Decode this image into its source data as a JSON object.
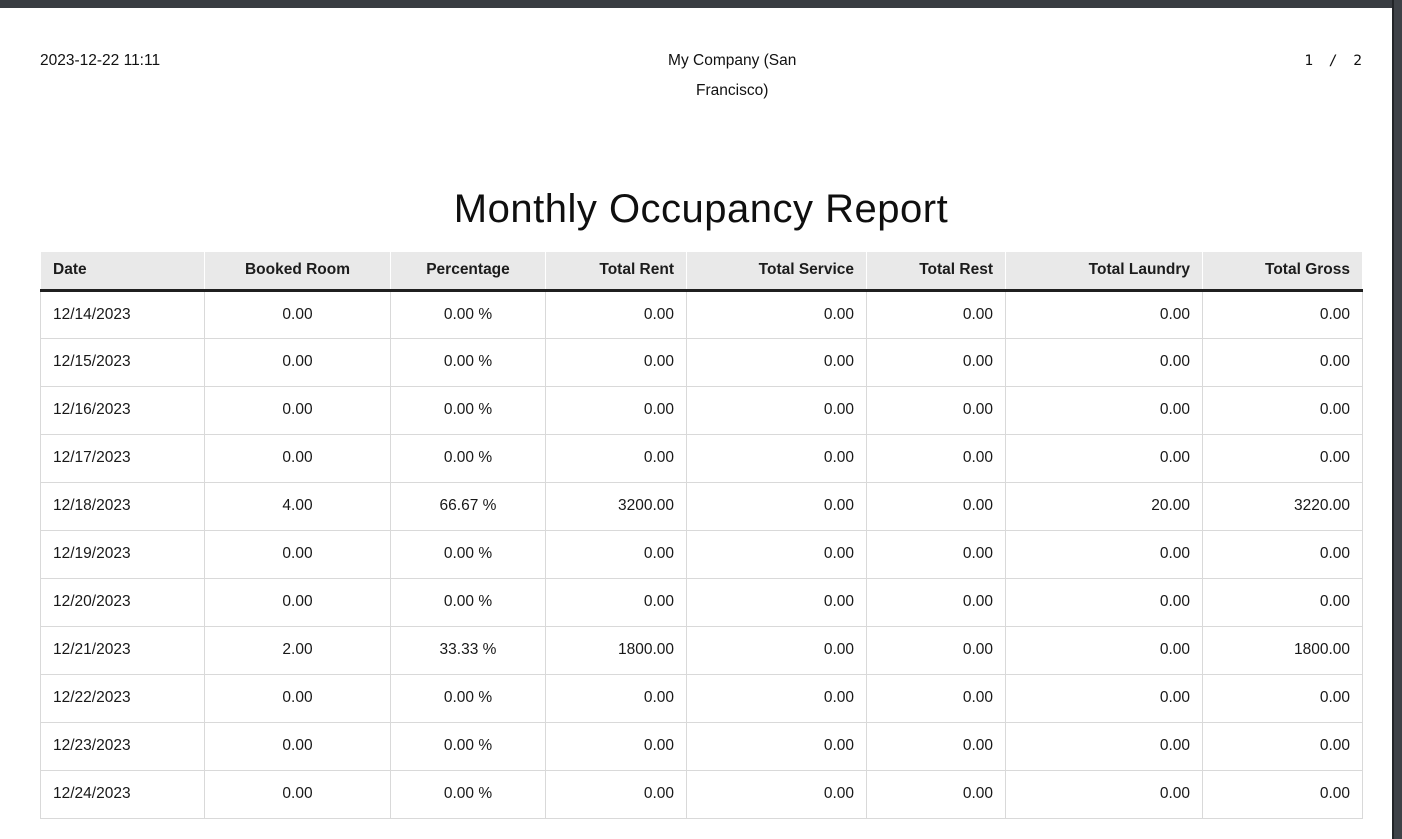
{
  "page_header": {
    "printed_datetime": "2023-12-22 11:11",
    "company_name": "My Company (San Francisco)",
    "page_indicator": "1 / 2"
  },
  "report": {
    "title": "Monthly Occupancy Report"
  },
  "table": {
    "columns": [
      {
        "label": "Date",
        "align": "left"
      },
      {
        "label": "Booked Room",
        "align": "center"
      },
      {
        "label": "Percentage",
        "align": "center"
      },
      {
        "label": "Total Rent",
        "align": "right"
      },
      {
        "label": "Total Service",
        "align": "right"
      },
      {
        "label": "Total Rest",
        "align": "right"
      },
      {
        "label": "Total Laundry",
        "align": "right"
      },
      {
        "label": "Total Gross",
        "align": "right"
      }
    ],
    "rows": [
      [
        "12/14/2023",
        "0.00",
        "0.00 %",
        "0.00",
        "0.00",
        "0.00",
        "0.00",
        "0.00"
      ],
      [
        "12/15/2023",
        "0.00",
        "0.00 %",
        "0.00",
        "0.00",
        "0.00",
        "0.00",
        "0.00"
      ],
      [
        "12/16/2023",
        "0.00",
        "0.00 %",
        "0.00",
        "0.00",
        "0.00",
        "0.00",
        "0.00"
      ],
      [
        "12/17/2023",
        "0.00",
        "0.00 %",
        "0.00",
        "0.00",
        "0.00",
        "0.00",
        "0.00"
      ],
      [
        "12/18/2023",
        "4.00",
        "66.67 %",
        "3200.00",
        "0.00",
        "0.00",
        "20.00",
        "3220.00"
      ],
      [
        "12/19/2023",
        "0.00",
        "0.00 %",
        "0.00",
        "0.00",
        "0.00",
        "0.00",
        "0.00"
      ],
      [
        "12/20/2023",
        "0.00",
        "0.00 %",
        "0.00",
        "0.00",
        "0.00",
        "0.00",
        "0.00"
      ],
      [
        "12/21/2023",
        "2.00",
        "33.33 %",
        "1800.00",
        "0.00",
        "0.00",
        "0.00",
        "1800.00"
      ],
      [
        "12/22/2023",
        "0.00",
        "0.00 %",
        "0.00",
        "0.00",
        "0.00",
        "0.00",
        "0.00"
      ],
      [
        "12/23/2023",
        "0.00",
        "0.00 %",
        "0.00",
        "0.00",
        "0.00",
        "0.00",
        "0.00"
      ],
      [
        "12/24/2023",
        "0.00",
        "0.00 %",
        "0.00",
        "0.00",
        "0.00",
        "0.00",
        "0.00"
      ]
    ]
  },
  "colors": {
    "frame_bar": "#393d42",
    "header_background": "#e9e9e9",
    "grid_line": "#d9d9d9",
    "header_rule": "#1f1f1f",
    "text": "#141414"
  }
}
